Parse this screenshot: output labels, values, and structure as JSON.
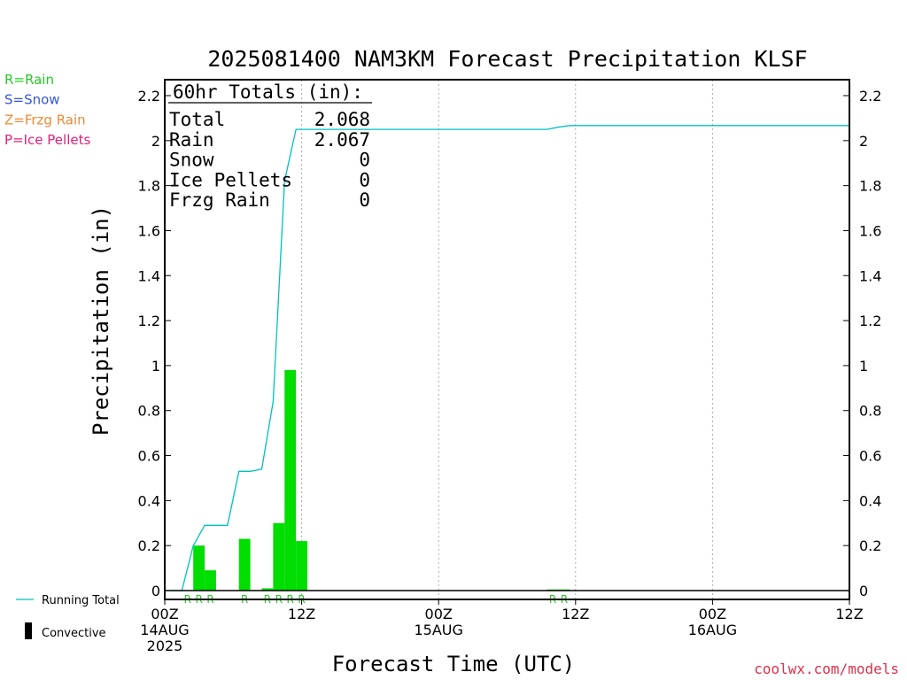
{
  "chart_data": {
    "type": "bar",
    "title": "2025081400 NAM3KM Forecast Precipitation KLSF",
    "xlabel": "Forecast Time (UTC)",
    "ylabel": "Precipitation (in)",
    "ylim": [
      0,
      2.28
    ],
    "xlim_hours": [
      0,
      60
    ],
    "grid": "vertical dotted at 12-hour marks",
    "yticks": [
      0,
      0.2,
      0.4,
      0.6,
      0.8,
      1,
      1.2,
      1.4,
      1.6,
      1.8,
      2,
      2.2
    ],
    "ytick_labels": [
      "0",
      "0.2",
      "0.4",
      "0.6",
      "0.8",
      "1",
      "1.2",
      "1.4",
      "1.6",
      "1.8",
      "2",
      "2.2"
    ],
    "xticks": [
      {
        "hour": 0,
        "lines": [
          "00Z",
          "14AUG",
          "2025"
        ]
      },
      {
        "hour": 12,
        "lines": [
          "12Z"
        ]
      },
      {
        "hour": 24,
        "lines": [
          "00Z",
          "15AUG"
        ]
      },
      {
        "hour": 36,
        "lines": [
          "12Z"
        ]
      },
      {
        "hour": 48,
        "lines": [
          "00Z",
          "16AUG"
        ]
      },
      {
        "hour": 60,
        "lines": [
          "12Z"
        ]
      }
    ],
    "bars": [
      {
        "hour": 3,
        "value": 0.2,
        "type": "R"
      },
      {
        "hour": 4,
        "value": 0.09,
        "type": "R"
      },
      {
        "hour": 7,
        "value": 0.23,
        "type": "R"
      },
      {
        "hour": 9,
        "value": 0.01,
        "type": "R"
      },
      {
        "hour": 10,
        "value": 0.3,
        "type": "R"
      },
      {
        "hour": 11,
        "value": 0.98,
        "type": "R"
      },
      {
        "hour": 12,
        "value": 0.22,
        "type": "R"
      },
      {
        "hour": 34,
        "value": 0.005,
        "type": "R"
      },
      {
        "hour": 35,
        "value": 0.005,
        "type": "R"
      }
    ],
    "precip_type_markers": [
      {
        "hour": 2,
        "label": "R"
      },
      {
        "hour": 3,
        "label": "R"
      },
      {
        "hour": 4,
        "label": "R"
      },
      {
        "hour": 7,
        "label": "R"
      },
      {
        "hour": 9,
        "label": "R"
      },
      {
        "hour": 10,
        "label": "R"
      },
      {
        "hour": 11,
        "label": "R"
      },
      {
        "hour": 12,
        "label": "R"
      },
      {
        "hour": 34,
        "label": "R"
      },
      {
        "hour": 35,
        "label": "R"
      }
    ],
    "running_total": {
      "name": "Running Total",
      "points": [
        [
          0.5,
          0
        ],
        [
          1.5,
          0
        ],
        [
          2.5,
          0.2
        ],
        [
          3.5,
          0.29
        ],
        [
          5.5,
          0.29
        ],
        [
          6.5,
          0.53
        ],
        [
          7.5,
          0.53
        ],
        [
          8.5,
          0.54
        ],
        [
          9.5,
          0.84
        ],
        [
          10.5,
          1.82
        ],
        [
          11.5,
          2.05
        ],
        [
          33.5,
          2.05
        ],
        [
          34.5,
          2.06
        ],
        [
          35.5,
          2.067
        ],
        [
          60,
          2.067
        ]
      ]
    },
    "totals_box": {
      "heading": "60hr Totals (in):",
      "rows": [
        {
          "label": "Total",
          "value": "2.068"
        },
        {
          "label": "Rain",
          "value": "2.067"
        },
        {
          "label": "Snow",
          "value": "0"
        },
        {
          "label": "Ice Pellets",
          "value": "0"
        },
        {
          "label": "Frzg Rain",
          "value": "0"
        }
      ]
    },
    "type_legend": [
      {
        "text": "R=Rain",
        "color": "#22cc22"
      },
      {
        "text": "S=Snow",
        "color": "#3355dd"
      },
      {
        "text": "Z=Frzg Rain",
        "color": "#ee8833"
      },
      {
        "text": "P=Ice Pellets",
        "color": "#e0207a"
      }
    ],
    "bottom_legend": [
      {
        "text": "Running Total",
        "kind": "line",
        "color": "#00c0c0"
      },
      {
        "text": "Convective",
        "kind": "bar",
        "color": "#000000"
      }
    ],
    "credit": "coolwx.com/models",
    "colors": {
      "bar": "#00dd00",
      "running_total": "#00c0c0",
      "marker": "#22cc22",
      "credit": "#e0304a"
    }
  }
}
